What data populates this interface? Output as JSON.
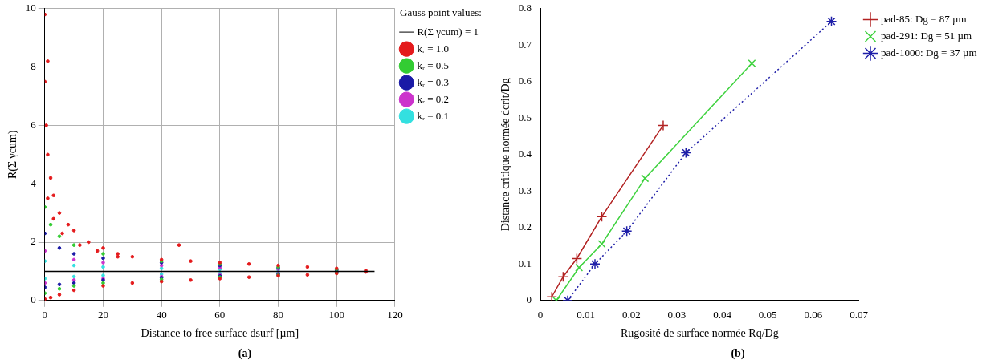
{
  "chart_data": [
    {
      "type": "scatter",
      "title": "(a)",
      "x_label": "Distance to free surface dsurf [µm]",
      "y_label": "R(Σ γcum)",
      "legend_title": "Gauss point values:",
      "legend": "right",
      "grid": true,
      "xlim": [
        0,
        120
      ],
      "xticks": [
        0,
        20,
        40,
        60,
        80,
        100,
        120
      ],
      "ylim": [
        0,
        10
      ],
      "yticks": [
        0,
        2,
        4,
        6,
        8,
        10
      ],
      "series": [
        {
          "name": "kᵣ = 1.0",
          "color": "#e41a1c",
          "marker": "circle",
          "x": [
            0,
            0.5,
            1,
            2,
            3,
            5,
            8,
            10,
            15,
            20,
            25,
            30,
            40,
            50,
            60,
            70,
            80,
            90,
            100,
            110,
            0,
            1,
            46,
            0,
            2,
            5,
            10,
            20,
            30,
            40,
            50,
            60,
            70,
            80,
            90,
            100,
            110,
            1,
            3,
            6,
            12,
            18,
            25
          ],
          "values": [
            7.5,
            6,
            5,
            4.2,
            3.6,
            3,
            2.6,
            2.4,
            2,
            1.8,
            1.6,
            1.5,
            1.4,
            1.35,
            1.3,
            1.25,
            1.2,
            1.15,
            1.1,
            1.03,
            9.8,
            8.2,
            1.9,
            0.05,
            0.1,
            0.2,
            0.35,
            0.5,
            0.6,
            0.65,
            0.7,
            0.75,
            0.8,
            0.85,
            0.88,
            0.93,
            0.98,
            3.5,
            2.8,
            2.3,
            1.9,
            1.7,
            1.5
          ]
        },
        {
          "name": "kᵣ = 0.5",
          "color": "#33cc33",
          "marker": "circle",
          "x": [
            0,
            2,
            5,
            10,
            20,
            40,
            60,
            80,
            100,
            0,
            5,
            10,
            20,
            40,
            60,
            80,
            100
          ],
          "values": [
            3.2,
            2.6,
            2.2,
            1.9,
            1.6,
            1.35,
            1.25,
            1.15,
            1.07,
            0.25,
            0.4,
            0.5,
            0.6,
            0.72,
            0.8,
            0.87,
            0.94
          ]
        },
        {
          "name": "kᵣ = 0.3",
          "color": "#1a1aa6",
          "marker": "circle",
          "x": [
            0,
            5,
            10,
            20,
            40,
            60,
            80,
            100,
            0,
            5,
            10,
            20,
            40,
            60,
            80,
            100
          ],
          "values": [
            2.3,
            1.8,
            1.6,
            1.45,
            1.3,
            1.2,
            1.12,
            1.05,
            0.45,
            0.55,
            0.6,
            0.7,
            0.78,
            0.84,
            0.9,
            0.96
          ]
        },
        {
          "name": "kᵣ = 0.2",
          "color": "#cc33cc",
          "marker": "circle",
          "x": [
            0,
            10,
            20,
            40,
            60,
            80,
            100,
            0,
            10,
            20,
            40,
            60,
            80,
            100
          ],
          "values": [
            1.7,
            1.4,
            1.3,
            1.2,
            1.13,
            1.08,
            1.04,
            0.6,
            0.7,
            0.75,
            0.82,
            0.87,
            0.92,
            0.97
          ]
        },
        {
          "name": "kᵣ = 0.1",
          "color": "#33e0e0",
          "marker": "circle",
          "x": [
            0,
            10,
            20,
            40,
            60,
            80,
            100,
            0,
            10,
            20,
            40,
            60,
            80,
            100
          ],
          "values": [
            1.35,
            1.2,
            1.15,
            1.1,
            1.07,
            1.05,
            1.02,
            0.75,
            0.82,
            0.86,
            0.9,
            0.93,
            0.95,
            0.98
          ]
        },
        {
          "name": "R(Σ γcum) = 1",
          "color": "#000000",
          "type": "line",
          "marker": "none",
          "line_style": "solid",
          "x": [
            0,
            113
          ],
          "values": [
            1,
            1
          ]
        }
      ]
    },
    {
      "type": "line",
      "title": "(b)",
      "x_label": "Rugosité de surface normée Rq/Dg",
      "y_label": "Distance critique normée dcrit/Dg",
      "legend": "right",
      "grid": false,
      "xlim": [
        0,
        0.07
      ],
      "xticks": [
        0,
        0.01,
        0.02,
        0.03,
        0.04,
        0.05,
        0.06,
        0.07
      ],
      "ylim": [
        0,
        0.8
      ],
      "yticks": [
        0,
        0.1,
        0.2,
        0.3,
        0.4,
        0.5,
        0.6,
        0.7,
        0.8
      ],
      "series": [
        {
          "name": "pad-85: Dg = 87 µm",
          "color": "#b22222",
          "marker": "plus",
          "line_style": "solid",
          "x": [
            0.0025,
            0.005,
            0.008,
            0.0135,
            0.027
          ],
          "values": [
            0.01,
            0.065,
            0.115,
            0.23,
            0.48
          ]
        },
        {
          "name": "pad-291: Dg = 51 µm",
          "color": "#3fd23f",
          "marker": "x",
          "line_style": "solid",
          "x": [
            0.0035,
            0.0085,
            0.0135,
            0.023,
            0.0465
          ],
          "values": [
            0,
            0.09,
            0.155,
            0.335,
            0.65
          ]
        },
        {
          "name": "pad-1000: Dg = 37 µm",
          "color": "#1f1fa8",
          "marker": "star",
          "line_style": "dotted",
          "x": [
            0.006,
            0.012,
            0.019,
            0.032,
            0.064
          ],
          "values": [
            0,
            0.1,
            0.19,
            0.405,
            0.765
          ]
        }
      ]
    }
  ]
}
